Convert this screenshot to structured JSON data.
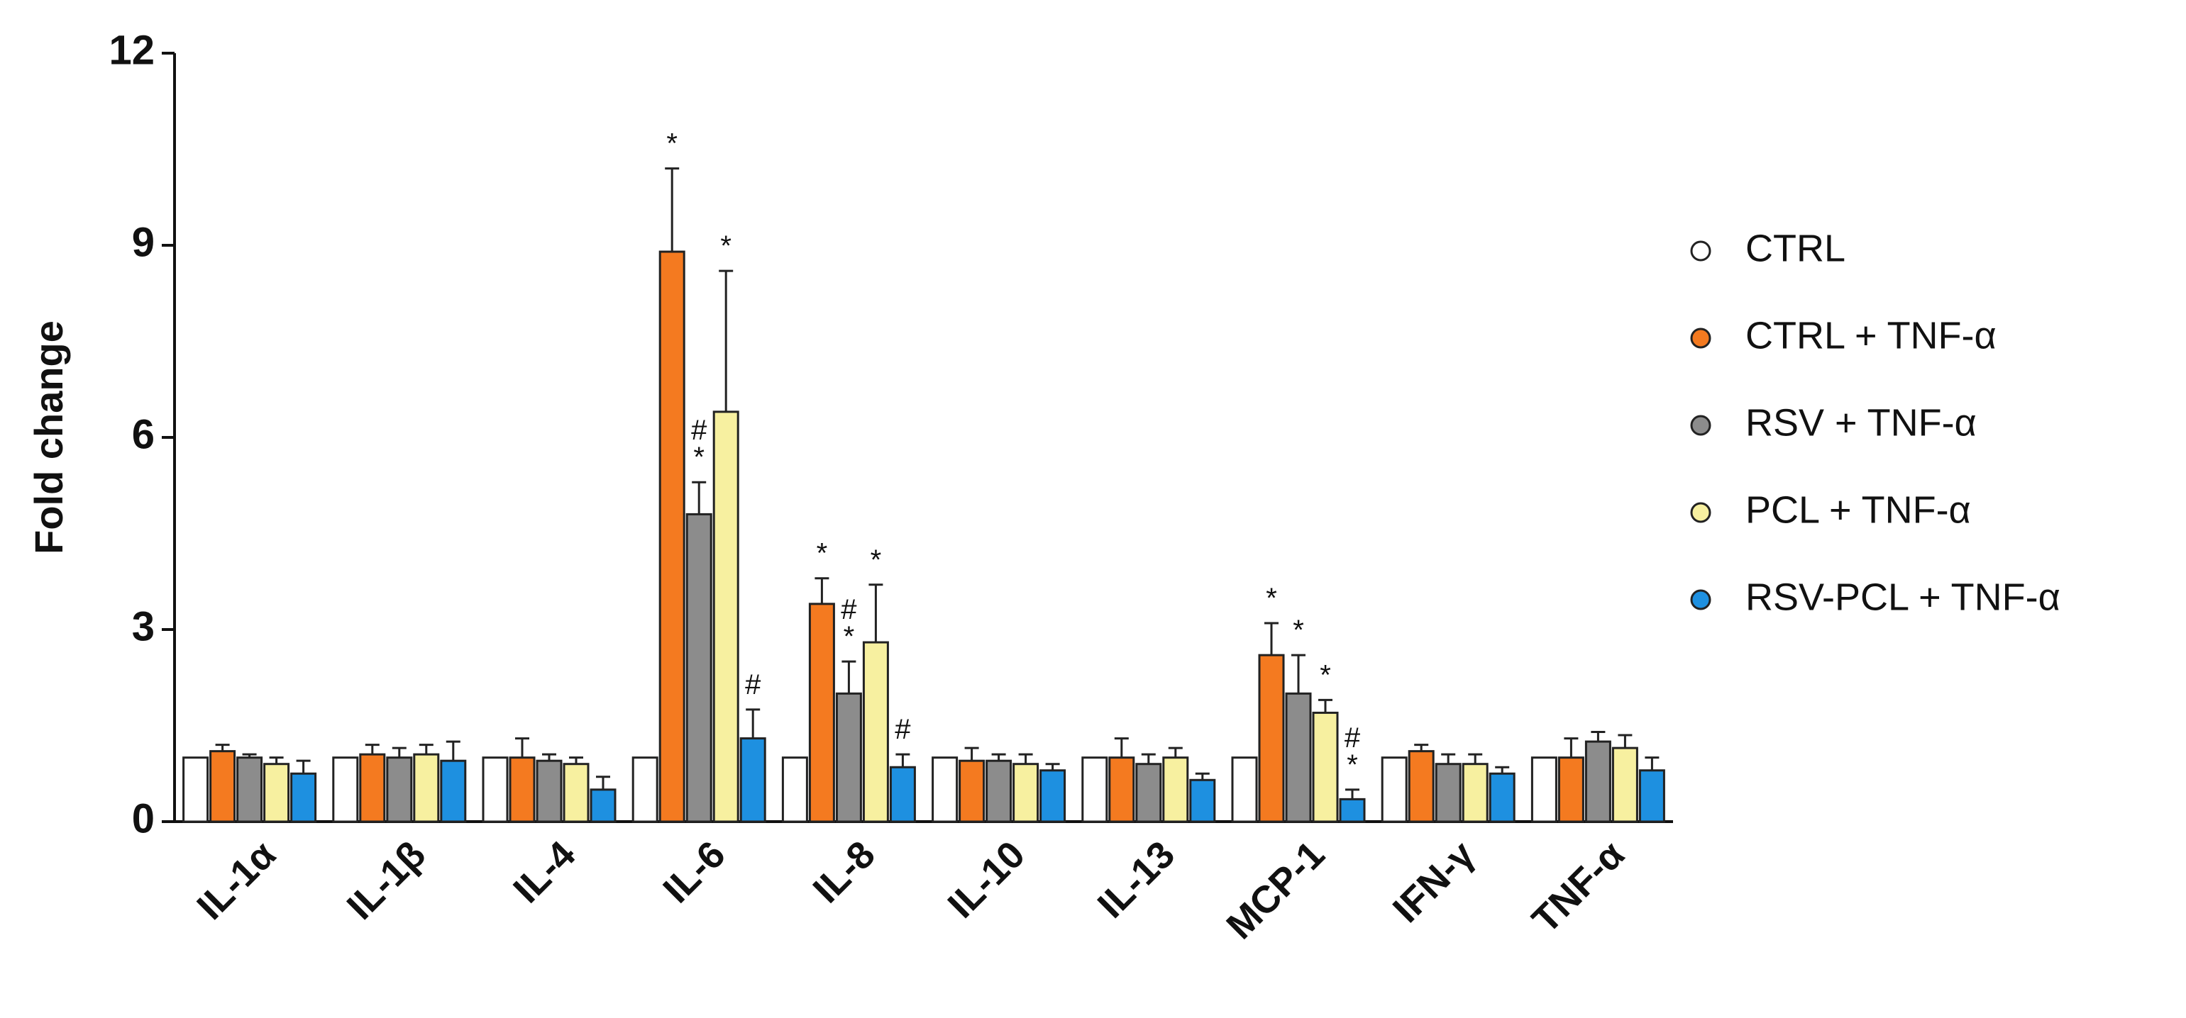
{
  "chart_data": {
    "type": "bar",
    "ylabel": "Fold change",
    "categories": [
      "IL-1α",
      "IL-1β",
      "IL-4",
      "IL-6",
      "IL-8",
      "IL-10",
      "IL-13",
      "MCP-1",
      "IFN-γ",
      "TNF-α"
    ],
    "ylim": [
      0,
      12
    ],
    "yticks": [
      0,
      3,
      6,
      9,
      12
    ],
    "series": [
      {
        "name": "CTRL",
        "color": "#ffffff",
        "values": [
          1,
          1,
          1,
          1,
          1,
          1,
          1,
          1,
          1,
          1
        ],
        "errors": [
          0,
          0,
          0,
          0,
          0,
          0,
          0,
          0,
          0,
          0
        ],
        "markers": [
          null,
          null,
          null,
          null,
          null,
          null,
          null,
          null,
          null,
          null
        ]
      },
      {
        "name": "CTRL + TNF-α",
        "color": "#f47a20",
        "values": [
          1.1,
          1.05,
          1.0,
          8.9,
          3.4,
          0.95,
          1.0,
          2.6,
          1.1,
          1.0
        ],
        "errors": [
          0.1,
          0.15,
          0.3,
          1.3,
          0.4,
          0.2,
          0.3,
          0.5,
          0.1,
          0.3
        ],
        "markers": [
          null,
          null,
          null,
          [
            "*"
          ],
          [
            "*"
          ],
          null,
          null,
          [
            "*"
          ],
          null,
          null
        ]
      },
      {
        "name": "RSV + TNF-α",
        "color": "#8c8c8c",
        "values": [
          1.0,
          1.0,
          0.95,
          4.8,
          2.0,
          0.95,
          0.9,
          2.0,
          0.9,
          1.25
        ],
        "errors": [
          0.05,
          0.15,
          0.1,
          0.5,
          0.5,
          0.1,
          0.15,
          0.6,
          0.15,
          0.15
        ],
        "markers": [
          null,
          null,
          null,
          [
            "#",
            "*"
          ],
          [
            "#",
            "*"
          ],
          null,
          null,
          [
            "*"
          ],
          null,
          null
        ]
      },
      {
        "name": "PCL + TNF-α",
        "color": "#f7f0a0",
        "values": [
          0.9,
          1.05,
          0.9,
          6.4,
          2.8,
          0.9,
          1.0,
          1.7,
          0.9,
          1.15
        ],
        "errors": [
          0.1,
          0.15,
          0.1,
          2.2,
          0.9,
          0.15,
          0.15,
          0.2,
          0.15,
          0.2
        ],
        "markers": [
          null,
          null,
          null,
          [
            "*"
          ],
          [
            "*"
          ],
          null,
          null,
          [
            "*"
          ],
          null,
          null
        ]
      },
      {
        "name": "RSV-PCL + TNF-α",
        "color": "#1e90e0",
        "values": [
          0.75,
          0.95,
          0.5,
          1.3,
          0.85,
          0.8,
          0.65,
          0.35,
          0.75,
          0.8
        ],
        "errors": [
          0.2,
          0.3,
          0.2,
          0.45,
          0.2,
          0.1,
          0.1,
          0.15,
          0.1,
          0.2
        ],
        "markers": [
          null,
          null,
          null,
          [
            "#"
          ],
          [
            "#"
          ],
          null,
          null,
          [
            "#",
            "*"
          ],
          null,
          null
        ]
      }
    ]
  }
}
